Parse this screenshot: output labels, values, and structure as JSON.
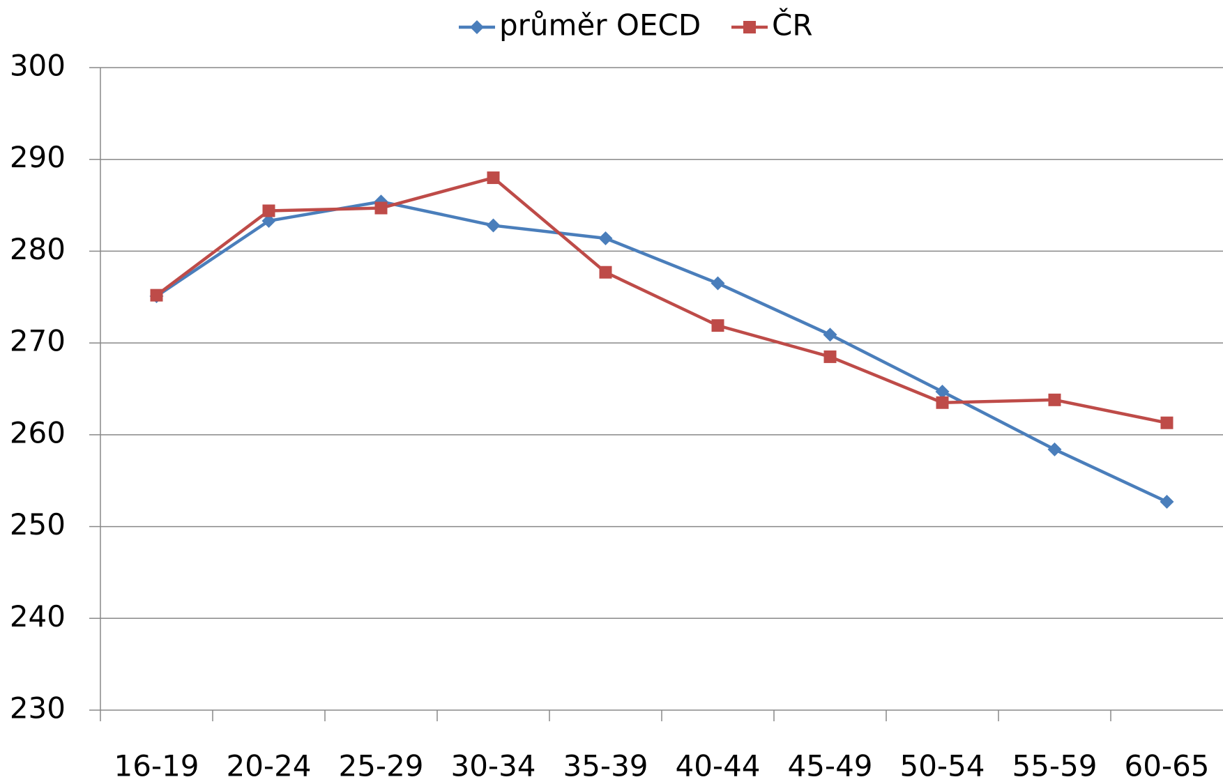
{
  "chart_data": {
    "type": "line",
    "categories": [
      "16-19",
      "20-24",
      "25-29",
      "30-34",
      "35-39",
      "40-44",
      "45-49",
      "50-54",
      "55-59",
      "60-65"
    ],
    "series": [
      {
        "name": "průměr OECD",
        "color": "#4a7ebb",
        "marker": "diamond",
        "values": [
          275.1,
          283.3,
          285.4,
          282.8,
          281.4,
          276.5,
          270.9,
          264.7,
          258.4,
          252.7
        ]
      },
      {
        "name": "ČR",
        "color": "#be4b48",
        "marker": "square",
        "values": [
          275.2,
          284.4,
          284.7,
          288.0,
          277.7,
          271.9,
          268.5,
          263.5,
          263.8,
          261.3
        ]
      }
    ],
    "ylim": [
      230,
      300
    ],
    "yticks": [
      230,
      240,
      250,
      260,
      270,
      280,
      290,
      300
    ],
    "grid": true,
    "legend": "top"
  }
}
